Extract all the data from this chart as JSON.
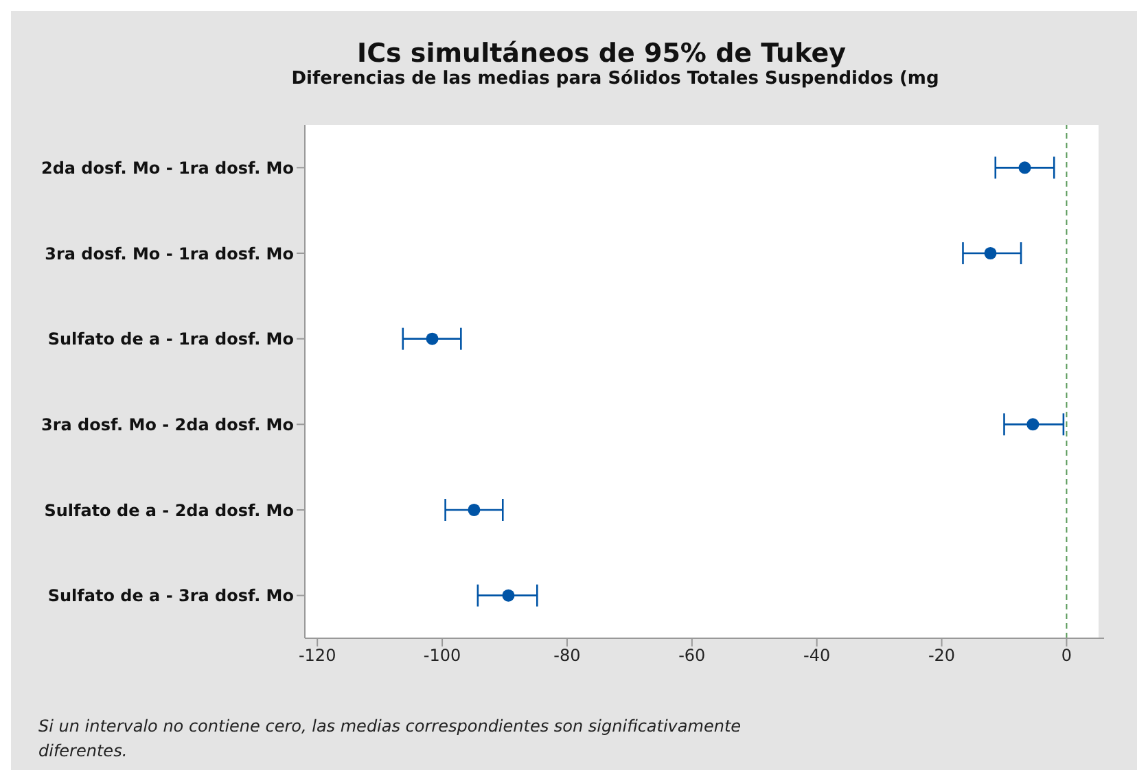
{
  "chart_data": {
    "type": "scatter",
    "orientation": "horizontal",
    "title": "ICs simultáneos de 95% de Tukey",
    "subtitle": "Diferencias de las medias para Sólidos Totales Suspendidos (mg",
    "categories": [
      "2da dosf. Mo - 1ra dosf. Mo",
      "3ra dosf. Mo - 1ra dosf. Mo",
      "Sulfato de a - 1ra dosf. Mo",
      "3ra dosf. Mo - 2da dosf. Mo",
      "Sulfato de a - 2da dosf. Mo",
      "Sulfato de a - 3ra dosf. Mo"
    ],
    "series": [
      {
        "color": "#0054a6",
        "values": [
          -6.7,
          -12.2,
          -101.6,
          -5.4,
          -94.9,
          -89.4
        ],
        "errors": [
          [
            -11.4,
            -2.0
          ],
          [
            -16.6,
            -7.3
          ],
          [
            -106.3,
            -97.0
          ],
          [
            -10.0,
            -0.5
          ],
          [
            -99.5,
            -90.3
          ],
          [
            -94.3,
            -84.8
          ]
        ]
      }
    ],
    "xlim": [
      -122,
      6
    ],
    "xticks": [
      -120,
      -100,
      -80,
      -60,
      -40,
      -20,
      0
    ],
    "ref_lines": [
      {
        "axis": "x",
        "value": 0,
        "color": "#5a9a5a",
        "line_style": "dashed"
      }
    ],
    "marker": "circle",
    "grid": false,
    "legend": false,
    "annotations": [
      "Si un intervalo no contiene cero, las medias correspondientes son significativamente diferentes."
    ]
  }
}
